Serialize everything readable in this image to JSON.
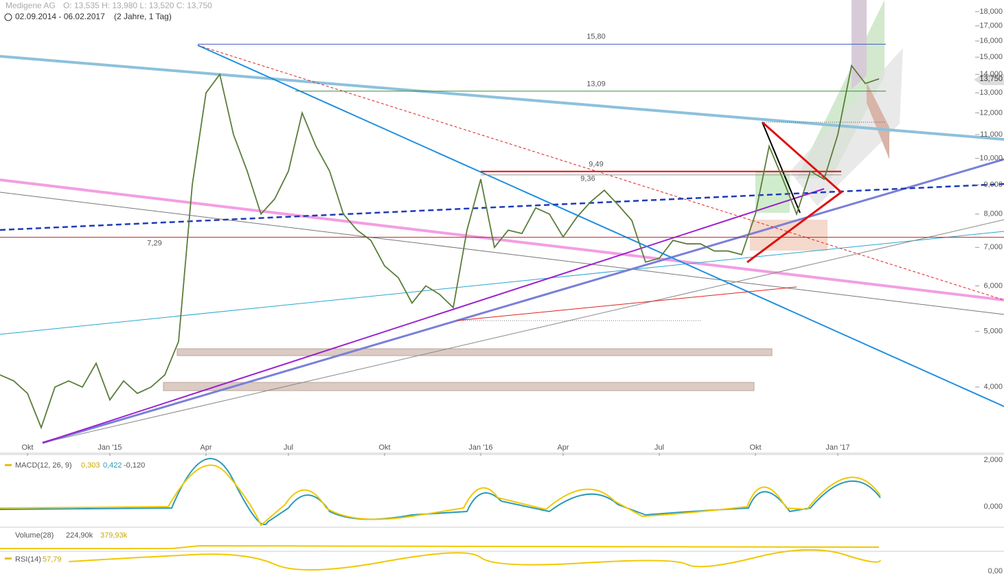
{
  "header": {
    "title": "Medigene AG",
    "ohlc": "O: 13,535  H: 13,980  L: 13,520  C: 13,750",
    "range": "02.09.2014 - 06.02.2017",
    "period": "(2 Jahre, 1 Tag)"
  },
  "chart_data": {
    "type": "line",
    "color": "#5a7d3a",
    "log_scale": true,
    "grid": false,
    "categories": [
      null,
      null,
      "Okt",
      null,
      null,
      null,
      null,
      null,
      "Jan '15",
      null,
      null,
      null,
      null,
      null,
      null,
      "Apr",
      null,
      null,
      null,
      null,
      null,
      "Jul",
      null,
      null,
      null,
      null,
      null,
      null,
      "Okt",
      null,
      null,
      null,
      null,
      null,
      null,
      "Jan '16",
      null,
      null,
      null,
      null,
      null,
      "Apr",
      null,
      null,
      null,
      null,
      null,
      null,
      "Jul",
      null,
      null,
      null,
      null,
      null,
      null,
      "Okt",
      null,
      null,
      null,
      null,
      null,
      "Jan '17",
      null,
      null,
      null
    ],
    "values": [
      4.2,
      4.1,
      3.9,
      3.4,
      4.0,
      4.1,
      4.0,
      4.4,
      3.8,
      4.1,
      3.9,
      4.0,
      4.2,
      4.8,
      9.0,
      13.0,
      14.0,
      11.0,
      9.5,
      8.0,
      8.5,
      9.5,
      12.0,
      10.5,
      9.5,
      8.0,
      7.5,
      7.2,
      6.5,
      6.2,
      5.6,
      6.0,
      5.8,
      5.5,
      7.5,
      9.2,
      7.0,
      7.5,
      7.4,
      8.2,
      8.0,
      7.3,
      7.9,
      8.4,
      8.8,
      8.3,
      7.8,
      6.6,
      6.7,
      7.2,
      7.1,
      7.1,
      6.9,
      6.9,
      6.8,
      8.0,
      10.5,
      9.2,
      8.0,
      9.5,
      9.2,
      11.0,
      14.5,
      13.5,
      13.75
    ],
    "ylim": [
      3.07,
      18.86
    ],
    "yticks": [
      {
        "value": 4,
        "label": "4,000"
      },
      {
        "value": 5,
        "label": "5,000"
      },
      {
        "value": 6,
        "label": "6,000"
      },
      {
        "value": 7,
        "label": "7,000"
      },
      {
        "value": 8,
        "label": "8,000"
      },
      {
        "value": 9,
        "label": "9,000"
      },
      {
        "value": 10,
        "label": "10,000"
      },
      {
        "value": 11,
        "label": "11,000"
      },
      {
        "value": 12,
        "label": "12,000"
      },
      {
        "value": 13,
        "label": "13,000"
      },
      {
        "value": 14,
        "label": "14,000"
      },
      {
        "value": 15,
        "label": "15,000"
      },
      {
        "value": 16,
        "label": "16,000"
      },
      {
        "value": 17,
        "label": "17,000"
      },
      {
        "value": 18,
        "label": "18,000"
      }
    ],
    "annotations": [
      {
        "value": 15.8,
        "label": "15,80"
      },
      {
        "value": 13.09,
        "label": "13,09"
      },
      {
        "value": 9.49,
        "label": "9,49"
      },
      {
        "value": 9.36,
        "label": "9,36"
      },
      {
        "value": 7.29,
        "label": "7,29"
      }
    ],
    "last_price": {
      "value": 13.75,
      "label": "13,750"
    }
  },
  "indicators": {
    "macd": {
      "name": "MACD(12, 26, 9)",
      "v1": "0,303",
      "v2": "0,422",
      "v3": "-0,120",
      "axis_top": "2,000",
      "axis_zero": "0,000"
    },
    "volume": {
      "name": "Volume(28)",
      "v1": "224,90k",
      "v2": "379,93k"
    },
    "rsi": {
      "name": "RSI(14)",
      "v1": "57,79",
      "axis_zero": "0,00"
    }
  }
}
